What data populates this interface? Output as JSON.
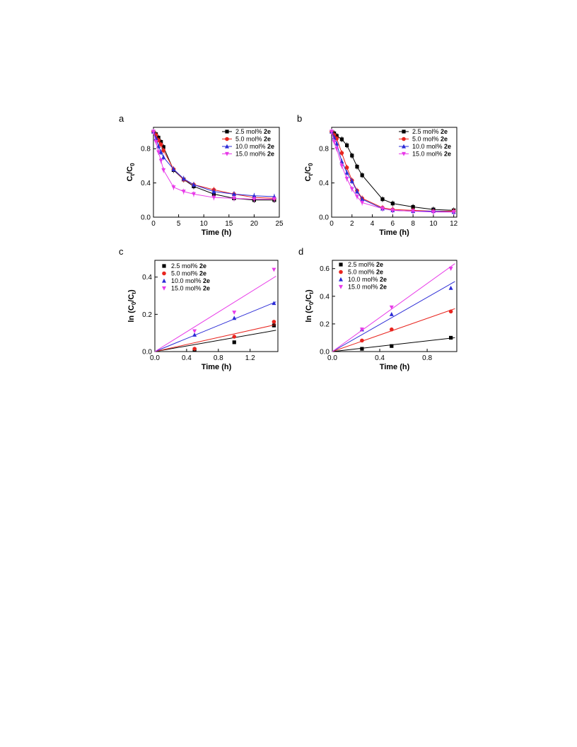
{
  "chart_data": [
    {
      "panel": "a",
      "type": "line",
      "xlabel": "Time (h)",
      "ylabel_main": "C",
      "ylabel_sub1": "t",
      "ylabel_mid": "/C",
      "ylabel_sub2": "0",
      "xlim": [
        0,
        25
      ],
      "ylim": [
        0,
        1.05
      ],
      "xticks": [
        0,
        5,
        10,
        15,
        20,
        25
      ],
      "xticklabels": [
        "0",
        "5",
        "10",
        "15",
        "20",
        "25"
      ],
      "yticks": [
        0,
        0.4,
        0.8
      ],
      "yticklabels": [
        "0.0",
        "0.4",
        "0.8"
      ],
      "legend_placement": "top-right",
      "series": [
        {
          "pre": "2.5 mol% ",
          "bold": "2e",
          "color": "#000000",
          "marker": "square",
          "x": [
            0,
            0.5,
            1,
            1.5,
            2,
            4,
            6,
            8,
            12,
            16,
            20,
            24
          ],
          "y": [
            1.0,
            0.97,
            0.93,
            0.88,
            0.82,
            0.55,
            0.44,
            0.36,
            0.27,
            0.22,
            0.2,
            0.2
          ]
        },
        {
          "pre": "5.0 mol% ",
          "bold": "2e",
          "color": "#e8251f",
          "marker": "circle",
          "x": [
            0,
            0.5,
            1,
            1.5,
            2,
            4,
            6,
            8,
            12,
            16,
            20,
            24
          ],
          "y": [
            1.0,
            0.96,
            0.9,
            0.85,
            0.78,
            0.56,
            0.44,
            0.38,
            0.32,
            0.27,
            0.23,
            0.22
          ]
        },
        {
          "pre": "10.0 mol% ",
          "bold": "2e",
          "color": "#2b2bd6",
          "marker": "triangle-up",
          "x": [
            0,
            0.5,
            1,
            1.5,
            2,
            4,
            6,
            8,
            12,
            16,
            20,
            24
          ],
          "y": [
            1.0,
            0.92,
            0.83,
            0.76,
            0.7,
            0.56,
            0.45,
            0.38,
            0.3,
            0.27,
            0.25,
            0.24
          ]
        },
        {
          "pre": "15.0 mol% ",
          "bold": "2e",
          "color": "#e83be8",
          "marker": "triangle-down",
          "x": [
            0,
            0.5,
            1,
            1.5,
            2,
            4,
            6,
            8,
            12,
            16,
            20,
            24
          ],
          "y": [
            1.0,
            0.88,
            0.76,
            0.66,
            0.55,
            0.35,
            0.3,
            0.27,
            0.23,
            0.22,
            0.21,
            0.21
          ]
        }
      ]
    },
    {
      "panel": "b",
      "type": "line",
      "xlabel": "Time (h)",
      "ylabel_main": "C",
      "ylabel_sub1": "t",
      "ylabel_mid": "/C",
      "ylabel_sub2": "0",
      "xlim": [
        0,
        12.3
      ],
      "ylim": [
        0,
        1.05
      ],
      "xticks": [
        0,
        2,
        4,
        6,
        8,
        10,
        12
      ],
      "xticklabels": [
        "0",
        "2",
        "4",
        "6",
        "8",
        "10",
        "12"
      ],
      "yticks": [
        0,
        0.4,
        0.8
      ],
      "yticklabels": [
        "0.0",
        "0.4",
        "0.8"
      ],
      "legend_placement": "top-right",
      "series": [
        {
          "pre": "2.5 mol% ",
          "bold": "2e",
          "color": "#000000",
          "marker": "square",
          "x": [
            0,
            0.25,
            0.5,
            1,
            1.5,
            2,
            2.5,
            3,
            5,
            6,
            8,
            10,
            12
          ],
          "y": [
            1.0,
            0.98,
            0.95,
            0.91,
            0.84,
            0.72,
            0.59,
            0.49,
            0.21,
            0.16,
            0.12,
            0.09,
            0.08
          ]
        },
        {
          "pre": "5.0 mol% ",
          "bold": "2e",
          "color": "#e8251f",
          "marker": "circle",
          "x": [
            0,
            0.25,
            0.5,
            1,
            1.5,
            2,
            2.5,
            3,
            5,
            6,
            8,
            10,
            12
          ],
          "y": [
            1.0,
            0.96,
            0.92,
            0.75,
            0.58,
            0.43,
            0.31,
            0.22,
            0.11,
            0.09,
            0.08,
            0.07,
            0.07
          ]
        },
        {
          "pre": "10.0 mol% ",
          "bold": "2e",
          "color": "#2b2bd6",
          "marker": "triangle-up",
          "x": [
            0,
            0.25,
            0.5,
            1,
            1.5,
            2,
            2.5,
            3,
            5,
            6,
            8,
            10,
            12
          ],
          "y": [
            1.0,
            0.93,
            0.86,
            0.65,
            0.52,
            0.42,
            0.3,
            0.21,
            0.1,
            0.08,
            0.07,
            0.07,
            0.06
          ]
        },
        {
          "pre": "15.0 mol% ",
          "bold": "2e",
          "color": "#e83be8",
          "marker": "triangle-down",
          "x": [
            0,
            0.25,
            0.5,
            1,
            1.5,
            2,
            2.5,
            3,
            5,
            6,
            8,
            10,
            12
          ],
          "y": [
            1.0,
            0.88,
            0.8,
            0.6,
            0.45,
            0.33,
            0.24,
            0.17,
            0.1,
            0.08,
            0.07,
            0.06,
            0.06
          ]
        }
      ]
    },
    {
      "panel": "c",
      "type": "scatter",
      "xlabel": "Time (h)",
      "ylabel_main": "ln (C",
      "ylabel_sub1": "0",
      "ylabel_mid": "/C",
      "ylabel_sub2": "t",
      "ylabel_end": ")",
      "xlim": [
        0,
        1.55
      ],
      "ylim": [
        0,
        0.49
      ],
      "xticks": [
        0,
        0.4,
        0.8,
        1.2
      ],
      "xticklabels": [
        "0.0",
        "0.4",
        "0.8",
        "1.2"
      ],
      "yticks": [
        0,
        0.2,
        0.4
      ],
      "yticklabels": [
        "0.0",
        "0.2",
        "0.4"
      ],
      "legend_placement": "top-left",
      "series": [
        {
          "pre": "2.5 mol% ",
          "bold": "2e",
          "color": "#000000",
          "marker": "square",
          "x": [
            0,
            0.5,
            1,
            1.5
          ],
          "y": [
            0,
            0.01,
            0.05,
            0.14
          ],
          "fit_slope": 0.075
        },
        {
          "pre": "5.0 mol% ",
          "bold": "2e",
          "color": "#e8251f",
          "marker": "circle",
          "x": [
            0,
            0.5,
            1,
            1.5
          ],
          "y": [
            0,
            0.015,
            0.08,
            0.16
          ],
          "fit_slope": 0.095
        },
        {
          "pre": "10.0 mol% ",
          "bold": "2e",
          "color": "#2b2bd6",
          "marker": "triangle-up",
          "x": [
            0,
            0.5,
            1,
            1.5
          ],
          "y": [
            0,
            0.09,
            0.18,
            0.26
          ],
          "fit_slope": 0.175
        },
        {
          "pre": "15.0 mol% ",
          "bold": "2e",
          "color": "#e83be8",
          "marker": "triangle-down",
          "x": [
            0,
            0.5,
            1,
            1.5
          ],
          "y": [
            0,
            0.11,
            0.21,
            0.44
          ],
          "fit_slope": 0.265
        }
      ]
    },
    {
      "panel": "d",
      "type": "scatter",
      "xlabel": "Time (h)",
      "ylabel_main": "ln (C",
      "ylabel_sub1": "0",
      "ylabel_mid": "/C",
      "ylabel_sub2": "t",
      "ylabel_end": ")",
      "xlim": [
        0,
        1.05
      ],
      "ylim": [
        0,
        0.66
      ],
      "xticks": [
        0,
        0.4,
        0.8
      ],
      "xticklabels": [
        "0.0",
        "0.4",
        "0.8"
      ],
      "yticks": [
        0,
        0.2,
        0.4,
        0.6
      ],
      "yticklabels": [
        "0.0",
        "0.2",
        "0.4",
        "0.6"
      ],
      "legend_placement": "top-left",
      "series": [
        {
          "pre": "2.5 mol% ",
          "bold": "2e",
          "color": "#000000",
          "marker": "square",
          "x": [
            0,
            0.25,
            0.5,
            1
          ],
          "y": [
            0,
            0.02,
            0.04,
            0.1
          ],
          "fit_slope": 0.097
        },
        {
          "pre": "5.0 mol% ",
          "bold": "2e",
          "color": "#e8251f",
          "marker": "circle",
          "x": [
            0,
            0.25,
            0.5,
            1
          ],
          "y": [
            0,
            0.08,
            0.16,
            0.29
          ],
          "fit_slope": 0.3
        },
        {
          "pre": "10.0 mol% ",
          "bold": "2e",
          "color": "#2b2bd6",
          "marker": "triangle-up",
          "x": [
            0,
            0.25,
            0.5,
            1
          ],
          "y": [
            0,
            0.16,
            0.27,
            0.46
          ],
          "fit_slope": 0.49
        },
        {
          "pre": "15.0 mol% ",
          "bold": "2e",
          "color": "#e83be8",
          "marker": "triangle-down",
          "x": [
            0,
            0.25,
            0.5,
            1
          ],
          "y": [
            0,
            0.16,
            0.32,
            0.6
          ],
          "fit_slope": 0.615
        }
      ]
    }
  ]
}
